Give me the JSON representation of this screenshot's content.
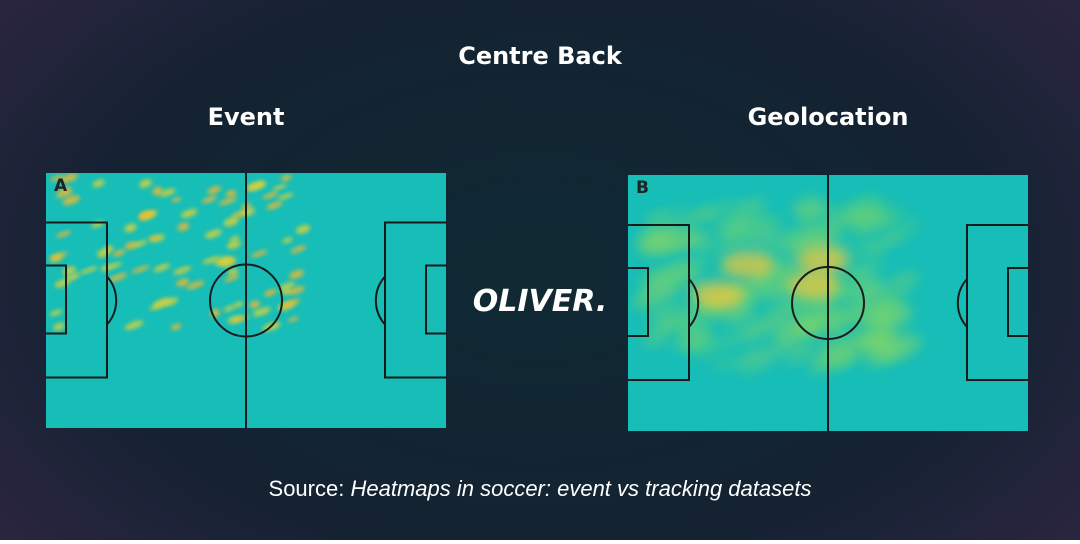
{
  "header": {
    "title": "Centre Back"
  },
  "panels": [
    {
      "heading": "Event",
      "label": "A"
    },
    {
      "heading": "Geolocation",
      "label": "B"
    }
  ],
  "logo": "OLIVER.",
  "footer": {
    "prefix": "Source:",
    "citation": "Heatmaps in soccer: event vs tracking datasets"
  }
}
